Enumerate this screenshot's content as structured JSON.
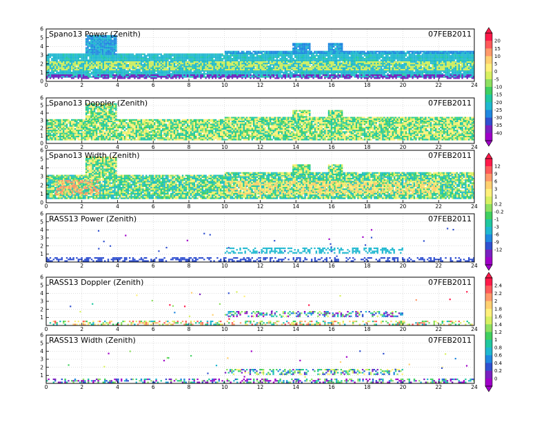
{
  "date_label": "07FEB2011",
  "colorbars": [
    {
      "labels": [
        "20",
        "15",
        "10",
        "5",
        "0",
        "-5",
        "-10",
        "-15",
        "-20",
        "-25",
        "-30",
        "-35",
        "-40"
      ],
      "colors": [
        "#ff1a4a",
        "#ff5a5a",
        "#ff9a6a",
        "#ffd070",
        "#fff07a",
        "#d8f060",
        "#8ee060",
        "#40d060",
        "#20c8a0",
        "#20b8d0",
        "#2088e0",
        "#3050d0",
        "#7a20c0",
        "#a000c8"
      ]
    },
    {
      "labels": [
        "12",
        "9",
        "6",
        "3",
        "1",
        "0.2",
        "-0.2",
        "-1",
        "-3",
        "-6",
        "-9",
        "-12"
      ],
      "colors": [
        "#ff1a4a",
        "#ff5a5a",
        "#ff9a6a",
        "#ffd070",
        "#fff07a",
        "#d8f060",
        "#8ee060",
        "#40d060",
        "#20c8a0",
        "#20b8d0",
        "#2088e0",
        "#3050d0",
        "#7a20c0",
        "#a000c8"
      ]
    },
    {
      "labels": [
        "2.4",
        "2.2",
        "2",
        "1.8",
        "1.6",
        "1.4",
        "1.2",
        "1",
        "0.8",
        "0.6",
        "0.4",
        "0.2",
        "0"
      ],
      "colors": [
        "#ff1a4a",
        "#ff5a5a",
        "#ff9a6a",
        "#ffd070",
        "#fff07a",
        "#d8f060",
        "#8ee060",
        "#40d060",
        "#20c8a0",
        "#20b8d0",
        "#2088e0",
        "#3050d0",
        "#7a20c0",
        "#a000c8"
      ]
    }
  ],
  "chart_data": [
    {
      "type": "heatmap",
      "title": "Spano13 Power (Zenith)",
      "x_ticks": [
        0,
        2,
        4,
        6,
        8,
        10,
        12,
        14,
        16,
        18,
        20,
        22,
        24
      ],
      "y_ticks": [
        0,
        1,
        2,
        3,
        4,
        5,
        6
      ],
      "xlim": [
        0,
        24
      ],
      "ylim": [
        0,
        6
      ],
      "mode": "dense",
      "colorbar": 0,
      "regions": [
        {
          "x": [
            0,
            24
          ],
          "y": [
            0.5,
            3.2
          ],
          "value": -22
        },
        {
          "x": [
            2.2,
            3.9
          ],
          "y": [
            3.2,
            5.3
          ],
          "value": -25
        },
        {
          "x": [
            10.0,
            24
          ],
          "y": [
            3.2,
            3.5
          ],
          "value": -26
        },
        {
          "x": [
            13.8,
            14.8
          ],
          "y": [
            3.5,
            4.4
          ],
          "value": -26
        },
        {
          "x": [
            15.8,
            16.6
          ],
          "y": [
            3.5,
            4.4
          ],
          "value": -26
        }
      ],
      "bands": [
        {
          "x": [
            0,
            24
          ],
          "y": [
            1.4,
            2.3
          ],
          "value": -3
        },
        {
          "x": [
            0,
            24
          ],
          "y": [
            0.4,
            0.8
          ],
          "value": -38
        }
      ]
    },
    {
      "type": "heatmap",
      "title": "Spano13 Doppler (Zenith)",
      "x_ticks": [
        0,
        2,
        4,
        6,
        8,
        10,
        12,
        14,
        16,
        18,
        20,
        22,
        24
      ],
      "y_ticks": [
        0,
        1,
        2,
        3,
        4,
        5,
        6
      ],
      "xlim": [
        0,
        24
      ],
      "ylim": [
        0,
        6
      ],
      "mode": "dense",
      "colorbar": 1,
      "regions": [
        {
          "x": [
            0,
            24
          ],
          "y": [
            0.5,
            3.2
          ],
          "value": 0
        },
        {
          "x": [
            2.2,
            3.9
          ],
          "y": [
            3.2,
            5.3
          ],
          "value": 0
        },
        {
          "x": [
            10.0,
            24
          ],
          "y": [
            3.2,
            3.5
          ],
          "value": 0
        },
        {
          "x": [
            13.8,
            14.8
          ],
          "y": [
            3.5,
            4.4
          ],
          "value": 0
        },
        {
          "x": [
            15.8,
            16.6
          ],
          "y": [
            3.5,
            4.4
          ],
          "value": 0
        }
      ],
      "bands": []
    },
    {
      "type": "heatmap",
      "title": "Spano13 Width (Zenith)",
      "x_ticks": [
        0,
        2,
        4,
        6,
        8,
        10,
        12,
        14,
        16,
        18,
        20,
        22,
        24
      ],
      "y_ticks": [
        0,
        1,
        2,
        3,
        4,
        5,
        6
      ],
      "xlim": [
        0,
        24
      ],
      "ylim": [
        0,
        6
      ],
      "mode": "dense",
      "colorbar": 1,
      "regions": [
        {
          "x": [
            0,
            24
          ],
          "y": [
            0.5,
            3.2
          ],
          "value": -1
        },
        {
          "x": [
            2.2,
            3.9
          ],
          "y": [
            3.2,
            5.3
          ],
          "value": 0.2
        },
        {
          "x": [
            10.0,
            24
          ],
          "y": [
            3.2,
            3.5
          ],
          "value": -1
        },
        {
          "x": [
            13.8,
            14.8
          ],
          "y": [
            3.5,
            4.4
          ],
          "value": 0
        },
        {
          "x": [
            15.8,
            16.6
          ],
          "y": [
            3.5,
            4.4
          ],
          "value": 0
        }
      ],
      "bands": [
        {
          "x": [
            0.5,
            3.0
          ],
          "y": [
            0.9,
            2.6
          ],
          "value": 6
        },
        {
          "x": [
            10.0,
            22.0
          ],
          "y": [
            1.0,
            2.5
          ],
          "value": 3
        }
      ]
    },
    {
      "type": "heatmap",
      "title": "RASS13 Power (Zenith)",
      "x_ticks": [
        0,
        2,
        4,
        6,
        8,
        10,
        12,
        14,
        16,
        18,
        20,
        22,
        24
      ],
      "y_ticks": [
        1,
        2,
        3,
        4,
        5,
        6
      ],
      "xlim": [
        0,
        24
      ],
      "ylim": [
        0,
        6
      ],
      "mode": "sparse",
      "colorbar": 1,
      "regions": [
        {
          "x": [
            0,
            24
          ],
          "y": [
            0.2,
            0.6
          ],
          "value": -11
        },
        {
          "x": [
            10.0,
            20.0
          ],
          "y": [
            1.2,
            1.8
          ],
          "value": -5
        }
      ],
      "bands": []
    },
    {
      "type": "heatmap",
      "title": "RASS13 Doppler (Zenith)",
      "x_ticks": [
        0,
        2,
        4,
        6,
        8,
        10,
        12,
        14,
        16,
        18,
        20,
        22,
        24
      ],
      "y_ticks": [
        1,
        2,
        3,
        4,
        5,
        6
      ],
      "xlim": [
        0,
        24
      ],
      "ylim": [
        0,
        6
      ],
      "mode": "sparse",
      "colorbar": 2,
      "regions": [
        {
          "x": [
            0,
            24
          ],
          "y": [
            0.2,
            0.6
          ],
          "value": 1.5
        },
        {
          "x": [
            10.0,
            20.0
          ],
          "y": [
            1.2,
            1.8
          ],
          "value": 0.7
        }
      ],
      "bands": []
    },
    {
      "type": "heatmap",
      "title": "RASS13 Width (Zenith)",
      "x_ticks": [
        0,
        2,
        4,
        6,
        8,
        10,
        12,
        14,
        16,
        18,
        20,
        22,
        24
      ],
      "y_ticks": [
        1,
        2,
        3,
        4,
        5,
        6
      ],
      "xlim": [
        0,
        24
      ],
      "ylim": [
        0,
        6
      ],
      "mode": "sparse",
      "colorbar": 2,
      "regions": [
        {
          "x": [
            0,
            24
          ],
          "y": [
            0.2,
            0.6
          ],
          "value": 0.5
        },
        {
          "x": [
            10.0,
            20.0
          ],
          "y": [
            1.2,
            1.8
          ],
          "value": 0.9
        }
      ],
      "bands": []
    }
  ]
}
